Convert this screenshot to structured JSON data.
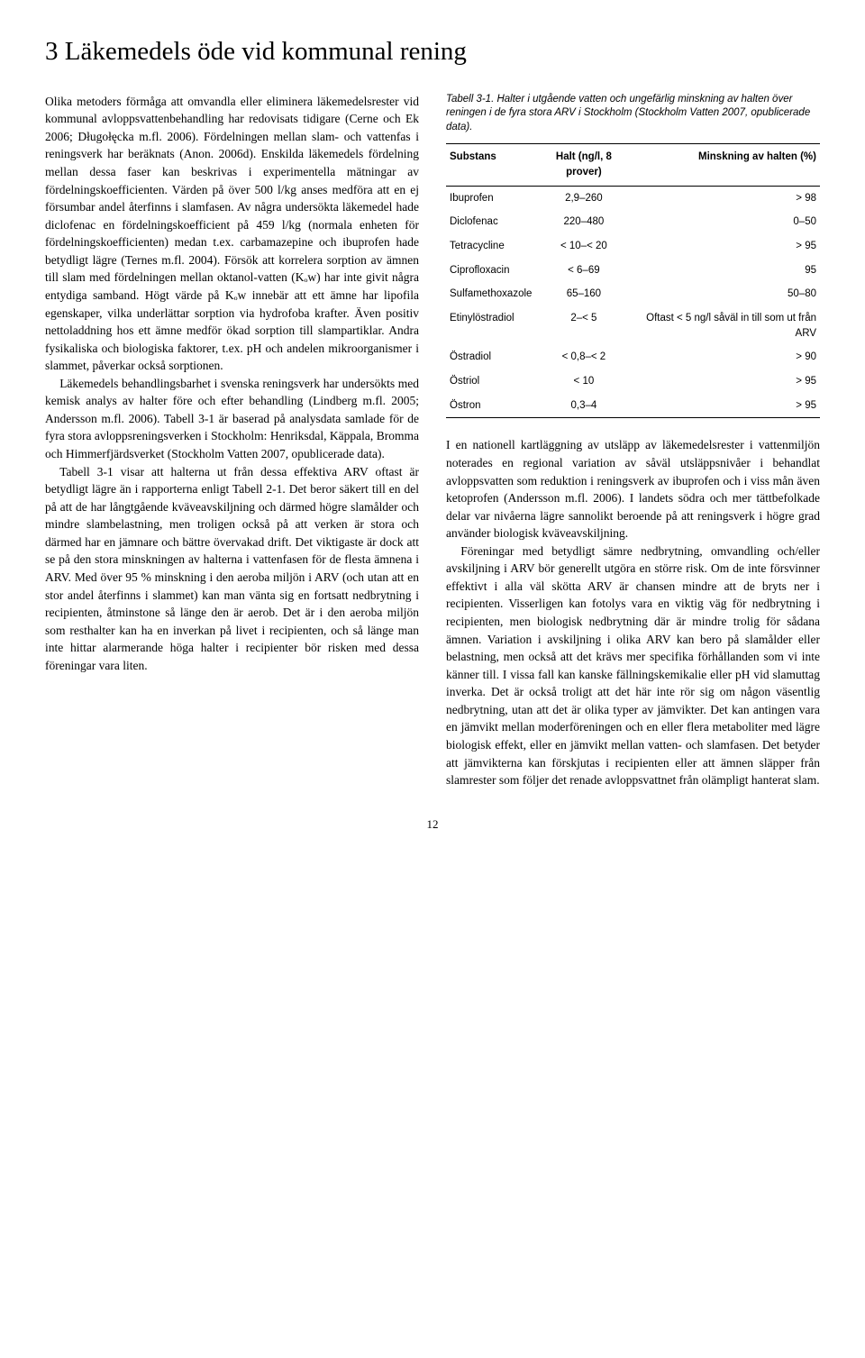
{
  "heading": "3  Läkemedels öde vid kommunal rening",
  "left_paragraphs": [
    "Olika metoders förmåga att omvandla eller eliminera läkemedelsrester vid kommunal avloppsvattenbehandling har redovisats tidigare (Cerne och Ek 2006; Długołęcka m.fl. 2006). Fördelningen mellan slam- och vattenfas i reningsverk har beräknats (Anon. 2006d). Enskilda läkemedels fördelning mellan dessa faser kan beskrivas i experimentella mätningar av fördelningskoefficienten. Värden på över 500 l/kg anses medföra att en ej försumbar andel återfinns i slamfasen. Av några undersökta läkemedel hade diclofenac en fördelningskoefficient på 459 l/kg (normala enheten för fördelningskoefficienten) medan t.ex. carbamazepine och ibuprofen hade betydligt lägre (Ternes m.fl. 2004). Försök att korrelera sorption av ämnen till slam med fördelningen mellan oktanol-vatten (Kₒw) har inte givit några entydiga samband. Högt värde på Kₒw innebär att ett ämne har lipofila egenskaper, vilka underlättar sorption via hydrofoba krafter. Även positiv nettoladdning hos ett ämne medför ökad sorption till slampartiklar. Andra fysikaliska och biologiska faktorer, t.ex. pH och andelen mikroorganismer i slammet, påverkar också sorptionen.",
    "Läkemedels behandlingsbarhet i svenska reningsverk har undersökts med kemisk analys av halter före och efter behandling (Lindberg m.fl. 2005; Andersson m.fl. 2006). Tabell 3-1 är baserad på analysdata samlade för de fyra stora avloppsreningsverken i Stockholm: Henriksdal, Käppala, Bromma och Himmerfjärdsverket (Stockholm Vatten 2007, opublicerade data).",
    "Tabell 3-1 visar att halterna ut från dessa effektiva ARV oftast är betydligt lägre än i rapporterna enligt Tabell 2-1. Det beror säkert till en del på att de har långtgående kväveavskiljning och därmed högre slamålder och mindre slambelastning, men troligen också på att verken är stora och därmed har en jämnare och bättre övervakad drift. Det viktigaste är dock att se på den stora minskningen av halterna i vattenfasen för de flesta ämnena i ARV. Med över 95 % minskning i den aeroba miljön i ARV (och utan att en stor andel återfinns i slammet) kan man vänta sig en fortsatt nedbrytning i recipienten, åtminstone så länge den är aerob. Det är i den aeroba miljön som resthalter kan ha en inverkan på livet i recipienten, och så länge man inte hittar alarmerande höga halter i recipienter bör risken med dessa föreningar vara liten."
  ],
  "table_caption": "Tabell 3-1. Halter i utgående vatten och ungefärlig minskning av halten över reningen i de fyra stora ARV i Stockholm (Stockholm Vatten 2007, opublicerade data).",
  "table": {
    "headers": [
      "Substans",
      "Halt (ng/l, 8 prover)",
      "Minskning av halten (%)"
    ],
    "rows": [
      [
        "Ibuprofen",
        "2,9–260",
        "> 98"
      ],
      [
        "Diclofenac",
        "220–480",
        "0–50"
      ],
      [
        "Tetracycline",
        "< 10–< 20",
        "> 95"
      ],
      [
        "Ciprofloxacin",
        "< 6–69",
        "95"
      ],
      [
        "Sulfamethoxazole",
        "65–160",
        "50–80"
      ],
      [
        "Etinylöstradiol",
        "2–< 5",
        "Oftast < 5 ng/l såväl in till som ut från ARV"
      ],
      [
        "Östradiol",
        "< 0,8–< 2",
        "> 90"
      ],
      [
        "Östriol",
        "< 10",
        "> 95"
      ],
      [
        "Östron",
        "0,3–4",
        "> 95"
      ]
    ]
  },
  "right_paragraphs": [
    "I en nationell kartläggning av utsläpp av läkemedelsrester i vattenmiljön noterades en regional variation av såväl utsläppsnivåer i behandlat avloppsvatten som reduktion i reningsverk av ibuprofen och i viss mån även ketoprofen (Andersson m.fl. 2006). I landets södra och mer tättbefolkade delar var nivåerna lägre sannolikt beroende på att reningsverk i högre grad använder biologisk kväveavskiljning.",
    "Föreningar med betydligt sämre nedbrytning, omvandling och/eller avskiljning i ARV bör generellt utgöra en större risk. Om de inte försvinner effektivt i alla väl skötta ARV är chansen mindre att de bryts ner i recipienten. Visserligen kan fotolys vara en viktig väg för nedbrytning i recipienten, men biologisk nedbrytning där är mindre trolig för sådana ämnen. Variation i avskiljning i olika ARV kan bero på slamålder eller belastning, men också att det krävs mer specifika förhållanden som vi inte känner till. I vissa fall kan kanske fällningskemikalie eller pH vid slamuttag inverka. Det är också troligt att det här inte rör sig om någon väsentlig nedbrytning, utan att det är olika typer av jämvikter. Det kan antingen vara en jämvikt mellan moderföreningen och en eller flera metaboliter med lägre biologisk effekt, eller en jämvikt mellan vatten- och slamfasen. Det betyder att jämvikterna kan förskjutas i recipienten eller att ämnen släpper från slamrester som följer det renade avloppsvattnet från olämpligt hanterat slam."
  ],
  "page_number": "12"
}
